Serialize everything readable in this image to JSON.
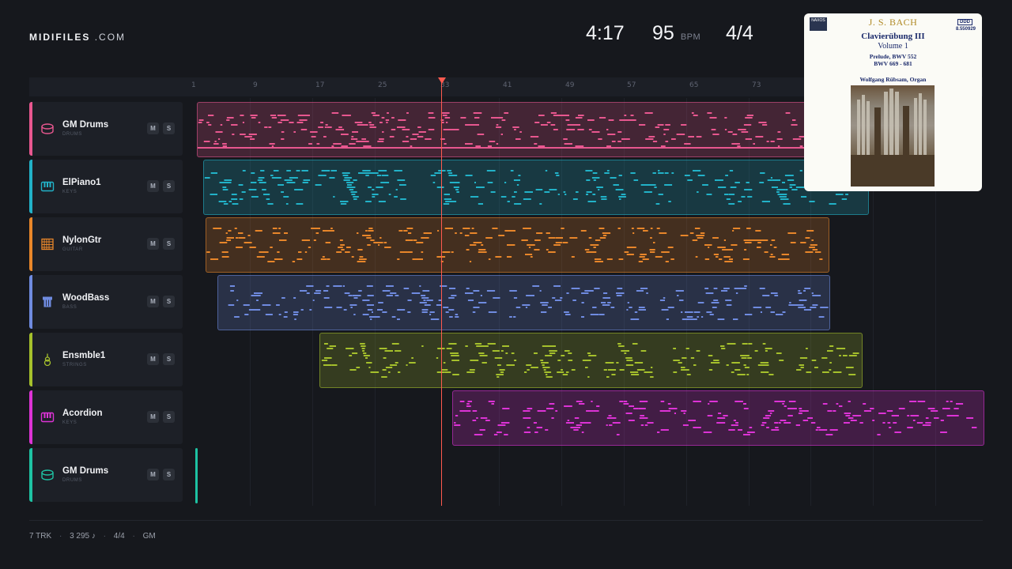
{
  "brand": {
    "name": "MIDIFILES",
    "domain": ".COM"
  },
  "stats": {
    "time": "4:17",
    "bpm": "95",
    "bpm_unit": "BPM",
    "signature": "4/4"
  },
  "ruler": {
    "ticks": [
      "1",
      "9",
      "17",
      "25",
      "33",
      "41",
      "49",
      "57",
      "65",
      "73"
    ]
  },
  "tracks": [
    {
      "name": "GM Drums",
      "category": "DRUMS",
      "color": "#e8578f",
      "icon": "drum-icon",
      "mute": "M",
      "solo": "S"
    },
    {
      "name": "ElPiano1",
      "category": "KEYS",
      "color": "#22b2c8",
      "icon": "piano-icon",
      "mute": "M",
      "solo": "S"
    },
    {
      "name": "NylonGtr",
      "category": "GUITAR",
      "color": "#e8862a",
      "icon": "guitar-icon",
      "mute": "M",
      "solo": "S"
    },
    {
      "name": "WoodBass",
      "category": "BASS",
      "color": "#6f8be0",
      "icon": "bass-icon",
      "mute": "M",
      "solo": "S"
    },
    {
      "name": "Ensmble1",
      "category": "STRINGS",
      "color": "#a5c02c",
      "icon": "strings-icon",
      "mute": "M",
      "solo": "S"
    },
    {
      "name": "Acordion",
      "category": "KEYS",
      "color": "#dd33d6",
      "icon": "piano-icon",
      "mute": "M",
      "solo": "S"
    },
    {
      "name": "GM Drums",
      "category": "DRUMS",
      "color": "#1ec2a3",
      "icon": "drum-icon",
      "mute": "M",
      "solo": "S"
    }
  ],
  "album": {
    "label": "NAXOS",
    "ddd": "DDD",
    "catalog": "8.550929",
    "composer": "J. S. BACH",
    "title": "Clavierübung  III",
    "volume": "Volume 1",
    "works1": "Prelude, BWV 552",
    "works2": "BWV 669 - 681",
    "performer": "Wolfgang Rübsam, Organ"
  },
  "footer": {
    "tracks": "7 TRK",
    "notes": "3 295 ♪",
    "signature": "4/4",
    "standard": "GM",
    "separator": "·"
  }
}
